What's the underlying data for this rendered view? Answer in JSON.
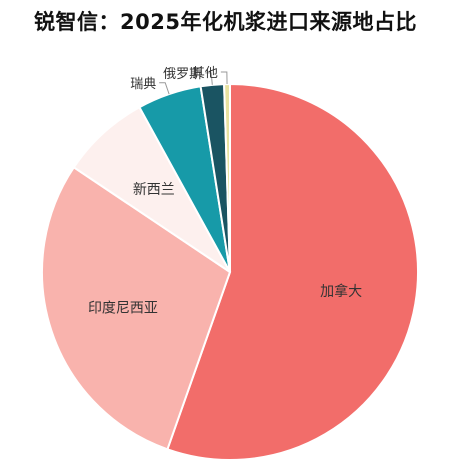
{
  "chart_data": {
    "type": "pie",
    "title": "锐智信：2025年化机浆进口来源地占比",
    "slices": [
      {
        "label": "加拿大",
        "value": 55.4,
        "color": "#f26d6a"
      },
      {
        "label": "印度尼西亚",
        "value": 29.0,
        "color": "#f9b3ad"
      },
      {
        "label": "新西兰",
        "value": 7.6,
        "color": "#fdf0ee"
      },
      {
        "label": "瑞典",
        "value": 5.5,
        "color": "#179aa8"
      },
      {
        "label": "俄罗斯",
        "value": 2.0,
        "color": "#1a5462"
      },
      {
        "label": "其他",
        "value": 0.5,
        "color": "#e8e2a0"
      }
    ]
  }
}
